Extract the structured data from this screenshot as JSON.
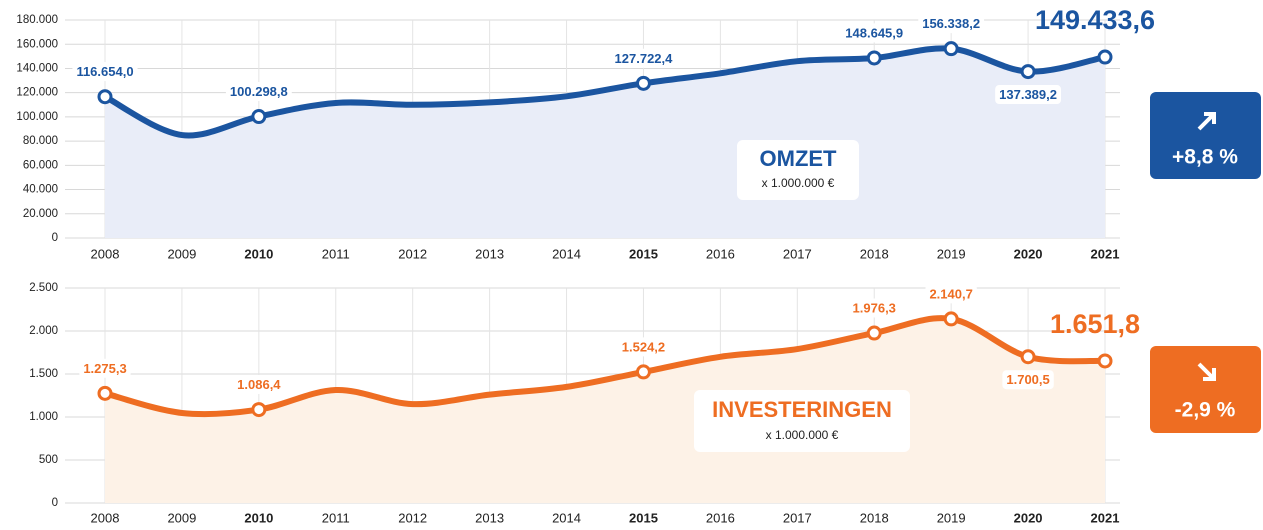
{
  "chart_data": [
    {
      "type": "line",
      "categories": [
        "2008",
        "2009",
        "2010",
        "2011",
        "2012",
        "2013",
        "2014",
        "2015",
        "2016",
        "2017",
        "2018",
        "2019",
        "2020",
        "2021"
      ],
      "values": [
        116654.0,
        85000,
        100298.8,
        111500,
        110000,
        112000,
        117000,
        127722.4,
        136000,
        146000,
        148645.9,
        156338.2,
        137389.2,
        149433.6
      ],
      "value_labels": [
        "116.654,0",
        null,
        "100.298,8",
        null,
        null,
        null,
        null,
        "127.722,4",
        null,
        null,
        "148.645,9",
        "156.338,2",
        "137.389,2",
        "149.433,6"
      ],
      "labels_below": [
        12
      ],
      "bold_ticks": [
        2,
        7,
        12,
        13
      ],
      "color": "#1b55a0",
      "fill": "#e9edf8",
      "ylim": [
        0,
        180000
      ],
      "yticks": [
        0,
        {
          "value": 20000,
          "label": "20.000"
        },
        {
          "value": 40000,
          "label": "40.000"
        },
        {
          "value": 60000,
          "label": "60.000"
        },
        {
          "value": 80000,
          "label": "80.000"
        },
        {
          "value": 100000,
          "label": "100.000"
        },
        {
          "value": 120000,
          "label": "120.000"
        },
        {
          "value": 140000,
          "label": "140.000"
        },
        {
          "value": 160000,
          "label": "160.000"
        },
        {
          "value": 180000,
          "label": "180.000"
        }
      ],
      "grid": true,
      "annotation": {
        "label": "OMZET",
        "unit": "x 1.000.000 €",
        "change": "+8,8 %"
      }
    },
    {
      "type": "line",
      "categories": [
        "2008",
        "2009",
        "2010",
        "2011",
        "2012",
        "2013",
        "2014",
        "2015",
        "2016",
        "2017",
        "2018",
        "2019",
        "2020",
        "2021"
      ],
      "values": [
        1275.3,
        1047,
        1086.4,
        1314,
        1150,
        1260,
        1350,
        1524.2,
        1700,
        1790,
        1976.3,
        2140.7,
        1700.5,
        1651.8
      ],
      "value_labels": [
        "1.275,3",
        null,
        "1.086,4",
        null,
        null,
        null,
        null,
        "1.524,2",
        null,
        null,
        "1.976,3",
        "2.140,7",
        "1.700,5",
        "1.651,8"
      ],
      "labels_below": [
        12
      ],
      "bold_ticks": [
        2,
        7,
        12,
        13
      ],
      "color": "#ee6d22",
      "fill": "#fdf2e7",
      "ylim": [
        0,
        2500
      ],
      "yticks": [
        0,
        500,
        {
          "value": 1000,
          "label": "1.000"
        },
        {
          "value": 1500,
          "label": "1.500"
        },
        {
          "value": 2000,
          "label": "2.000"
        },
        {
          "value": 2500,
          "label": "2.500"
        }
      ],
      "grid": true,
      "annotation": {
        "label": "INVESTERINGEN",
        "unit": "x 1.000.000 €",
        "change": "-2,9 %"
      }
    }
  ]
}
